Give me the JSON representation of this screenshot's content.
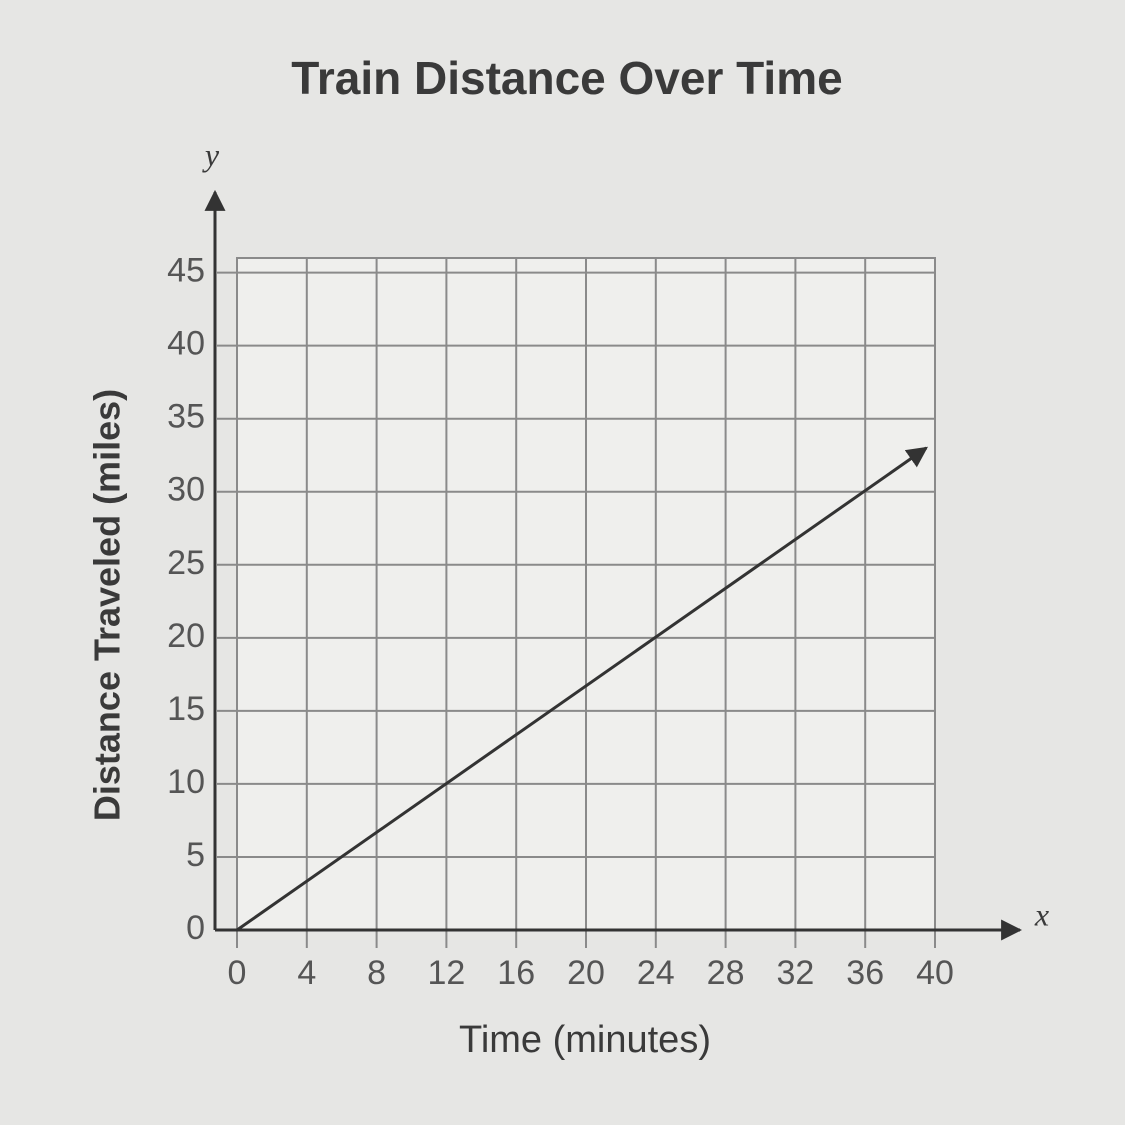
{
  "chart_data": {
    "type": "line",
    "title": "Train Distance Over Time",
    "x_label": "Time (minutes)",
    "y_label": "Distance Traveled (miles)",
    "x_axis_letter": "x",
    "y_axis_letter": "y",
    "x": [
      0,
      39.5
    ],
    "series": [
      {
        "color": "#333333",
        "values": [
          0,
          33
        ]
      }
    ],
    "xlim": [
      0,
      40
    ],
    "xticks": [
      0,
      4,
      8,
      12,
      16,
      20,
      24,
      28,
      32,
      36,
      40
    ],
    "ylim": [
      0,
      46
    ],
    "yticks": [
      0,
      5,
      10,
      15,
      20,
      25,
      30,
      35,
      40,
      45
    ],
    "grid": true
  }
}
